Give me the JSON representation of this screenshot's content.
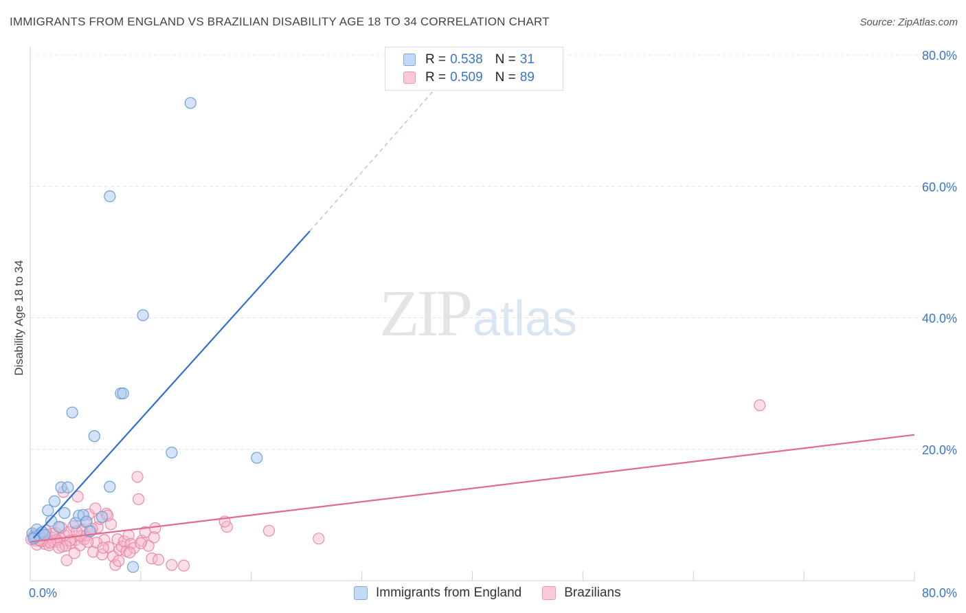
{
  "title": "IMMIGRANTS FROM ENGLAND VS BRAZILIAN DISABILITY AGE 18 TO 34 CORRELATION CHART",
  "source": "Source: ZipAtlas.com",
  "watermark": {
    "zip": "ZIP",
    "atlas": "atlas"
  },
  "legend": {
    "rows": [
      {
        "r_label": "R =",
        "r_value": "0.538",
        "n_label": "N =",
        "n_value": "31"
      },
      {
        "r_label": "R =",
        "r_value": "0.509",
        "n_label": "N =",
        "n_value": "89"
      }
    ]
  },
  "bottom_legend": {
    "england": "Immigrants from England",
    "brazilians": "Brazilians"
  },
  "colors": {
    "england_fill": "#aac8f0",
    "england_stroke": "#6d9fd9",
    "england_line": "#2f6fd0",
    "brazil_fill": "#f6b6c9",
    "brazil_stroke": "#e88aa7",
    "brazil_line": "#e06a92",
    "tick_label": "#3a75c4",
    "grid": "#e3e3e3"
  },
  "chart_data": {
    "type": "scatter",
    "title": "IMMIGRANTS FROM ENGLAND VS BRAZILIAN DISABILITY AGE 18 TO 34 CORRELATION CHART",
    "xlabel": "",
    "ylabel": "Disability Age 18 to 34",
    "xlim": [
      0,
      80
    ],
    "ylim": [
      0,
      80
    ],
    "x_tick_labels": [
      "0.0%",
      "80.0%"
    ],
    "y_ticks": [
      20,
      40,
      60,
      80
    ],
    "y_tick_labels": [
      "20.0%",
      "40.0%",
      "60.0%",
      "80.0%"
    ],
    "series": [
      {
        "name": "Immigrants from England",
        "r": 0.538,
        "n": 31,
        "points": [
          [
            0.2,
            7.2
          ],
          [
            0.4,
            6.6
          ],
          [
            0.6,
            7.8
          ],
          [
            0.8,
            6.9
          ],
          [
            1.1,
            7.4
          ],
          [
            1.3,
            7.0
          ],
          [
            1.6,
            10.7
          ],
          [
            1.9,
            9.1
          ],
          [
            2.2,
            12.1
          ],
          [
            2.6,
            8.2
          ],
          [
            2.8,
            14.2
          ],
          [
            3.1,
            10.3
          ],
          [
            3.4,
            14.2
          ],
          [
            3.8,
            25.6
          ],
          [
            4.1,
            8.8
          ],
          [
            4.4,
            9.9
          ],
          [
            4.8,
            10.0
          ],
          [
            5.1,
            9.0
          ],
          [
            5.4,
            7.5
          ],
          [
            5.8,
            22.0
          ],
          [
            6.5,
            9.7
          ],
          [
            7.2,
            14.3
          ],
          [
            7.2,
            58.5
          ],
          [
            8.2,
            28.5
          ],
          [
            8.4,
            28.5
          ],
          [
            9.3,
            2.1
          ],
          [
            10.2,
            40.4
          ],
          [
            12.8,
            19.5
          ],
          [
            14.5,
            72.7
          ],
          [
            20.5,
            18.7
          ],
          [
            0.3,
            6.4
          ]
        ],
        "trend": {
          "x0": 0.3,
          "y0": 6.5,
          "x1": 25.3,
          "y1": 53.2,
          "dashed_to_x": 36.5,
          "dashed_to_y": 74.6
        }
      },
      {
        "name": "Brazilians",
        "r": 0.509,
        "n": 89,
        "points": [
          [
            0.1,
            6.3
          ],
          [
            0.3,
            6.8
          ],
          [
            0.5,
            6.1
          ],
          [
            0.7,
            7.1
          ],
          [
            0.9,
            6.5
          ],
          [
            1.1,
            6.2
          ],
          [
            1.3,
            5.6
          ],
          [
            1.5,
            7.0
          ],
          [
            1.7,
            5.4
          ],
          [
            1.9,
            6.6
          ],
          [
            2.1,
            6.0
          ],
          [
            2.3,
            7.3
          ],
          [
            2.5,
            5.9
          ],
          [
            2.7,
            6.4
          ],
          [
            2.9,
            5.2
          ],
          [
            3.1,
            6.9
          ],
          [
            3.3,
            3.1
          ],
          [
            3.5,
            7.4
          ],
          [
            3.7,
            5.7
          ],
          [
            3.9,
            8.3
          ],
          [
            4.1,
            6.2
          ],
          [
            4.3,
            12.8
          ],
          [
            4.5,
            5.4
          ],
          [
            4.7,
            7.8
          ],
          [
            4.9,
            6.3
          ],
          [
            5.1,
            6.9
          ],
          [
            5.3,
            10.1
          ],
          [
            5.5,
            7.6
          ],
          [
            5.7,
            4.4
          ],
          [
            5.9,
            11.0
          ],
          [
            6.1,
            8.1
          ],
          [
            6.3,
            9.4
          ],
          [
            6.5,
            4.0
          ],
          [
            6.7,
            6.2
          ],
          [
            6.9,
            10.2
          ],
          [
            7.1,
            5.1
          ],
          [
            7.3,
            8.6
          ],
          [
            7.5,
            3.7
          ],
          [
            7.7,
            2.4
          ],
          [
            7.9,
            6.3
          ],
          [
            8.1,
            4.7
          ],
          [
            8.3,
            5.2
          ],
          [
            8.5,
            6.0
          ],
          [
            8.7,
            4.5
          ],
          [
            8.9,
            6.9
          ],
          [
            9.1,
            5.6
          ],
          [
            9.4,
            5.0
          ],
          [
            9.7,
            15.8
          ],
          [
            9.8,
            12.4
          ],
          [
            10.1,
            6.1
          ],
          [
            10.4,
            7.4
          ],
          [
            10.7,
            5.3
          ],
          [
            11.0,
            3.4
          ],
          [
            11.3,
            8.0
          ],
          [
            11.6,
            3.2
          ],
          [
            11.2,
            6.6
          ],
          [
            12.8,
            2.4
          ],
          [
            13.9,
            2.3
          ],
          [
            17.8,
            8.2
          ],
          [
            17.6,
            9.0
          ],
          [
            21.6,
            7.6
          ],
          [
            26.1,
            6.4
          ],
          [
            66.0,
            26.7
          ],
          [
            3.0,
            13.5
          ],
          [
            2.4,
            6.2
          ],
          [
            1.8,
            5.8
          ],
          [
            1.2,
            6.9
          ],
          [
            0.6,
            5.5
          ],
          [
            4.0,
            4.2
          ],
          [
            5.0,
            8.9
          ],
          [
            6.0,
            5.8
          ],
          [
            7.0,
            9.9
          ],
          [
            8.0,
            3.0
          ],
          [
            9.0,
            4.3
          ],
          [
            10.0,
            5.7
          ],
          [
            3.6,
            6.1
          ],
          [
            2.0,
            7.2
          ],
          [
            1.0,
            6.0
          ],
          [
            0.4,
            7.0
          ],
          [
            2.8,
            8.1
          ],
          [
            4.6,
            6.8
          ],
          [
            5.6,
            7.9
          ],
          [
            6.6,
            5.0
          ],
          [
            3.2,
            5.3
          ],
          [
            1.4,
            7.6
          ],
          [
            0.8,
            6.2
          ],
          [
            2.6,
            5.0
          ],
          [
            4.2,
            7.5
          ],
          [
            5.2,
            5.9
          ]
        ],
        "trend": {
          "x0": 0,
          "y0": 5.9,
          "x1": 80,
          "y1": 22.2
        }
      }
    ]
  }
}
